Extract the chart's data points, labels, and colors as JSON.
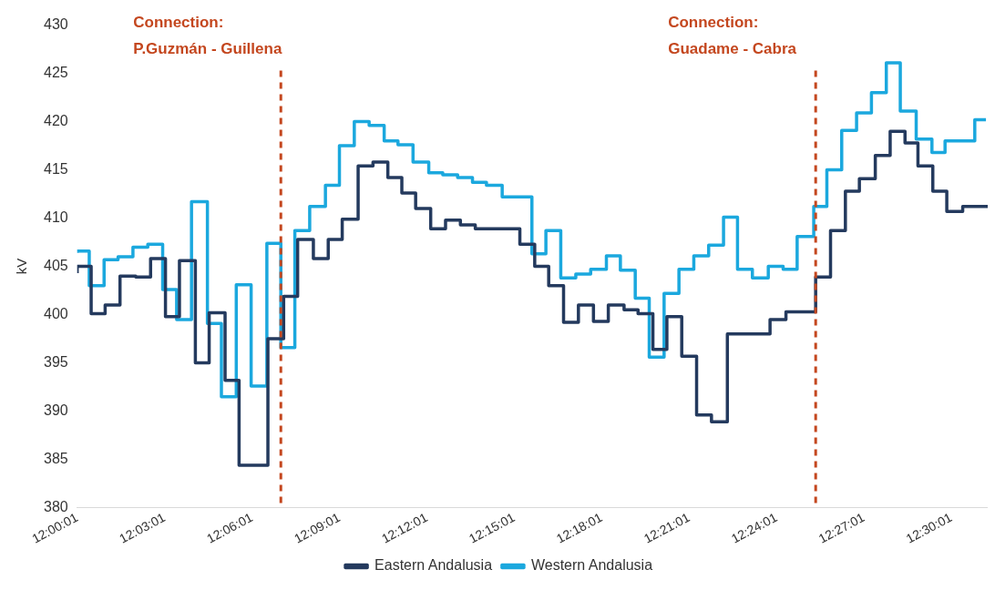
{
  "chart_data": {
    "type": "step",
    "ylabel": "kV",
    "legend": "bottom",
    "grid": false,
    "line_style": "solid",
    "marker": "none",
    "xlim": [
      12.0003,
      12.5211
    ],
    "ylim": [
      380,
      430
    ],
    "yticks": [
      380,
      385,
      390,
      395,
      400,
      405,
      410,
      415,
      420,
      425,
      430
    ],
    "xticks": [
      {
        "value": 12.0003,
        "label": "12:00:01"
      },
      {
        "value": 12.0503,
        "label": "12:03:01"
      },
      {
        "value": 12.1003,
        "label": "12:06:01"
      },
      {
        "value": 12.1503,
        "label": "12:09:01"
      },
      {
        "value": 12.2003,
        "label": "12:12:01"
      },
      {
        "value": 12.2503,
        "label": "12:15:01"
      },
      {
        "value": 12.3003,
        "label": "12:18:01"
      },
      {
        "value": 12.3503,
        "label": "12:21:01"
      },
      {
        "value": 12.4003,
        "label": "12:24:01"
      },
      {
        "value": 12.4503,
        "label": "12:27:01"
      },
      {
        "value": 12.5003,
        "label": "12:30:01"
      }
    ],
    "ref_lines": [
      {
        "axis": "x",
        "value": 12.1168,
        "label": "Connection:\nP.Guzmán - Guillena",
        "color": "#c4471f",
        "line_style": "dashed"
      },
      {
        "axis": "x",
        "value": 12.4227,
        "label": "Connection:\nGuadame - Cabra",
        "color": "#c4471f",
        "line_style": "dashed"
      }
    ],
    "series": [
      {
        "name": "Eastern Andalusia",
        "color": "#243a5e",
        "x": [
          12.0003,
          12.0083,
          12.0163,
          12.0248,
          12.0338,
          12.0423,
          12.0508,
          12.0588,
          12.0679,
          12.0758,
          12.0849,
          12.0929,
          12.1094,
          12.1184,
          12.1264,
          12.1354,
          12.1439,
          12.1519,
          12.161,
          12.1695,
          12.178,
          12.186,
          12.1939,
          12.2025,
          12.211,
          12.2195,
          12.228,
          12.2535,
          12.262,
          12.27,
          12.2785,
          12.287,
          12.2956,
          12.3041,
          12.3131,
          12.3211,
          12.3296,
          12.3376,
          12.3461,
          12.3546,
          12.3631,
          12.3722,
          12.3966,
          12.4057,
          12.4227,
          12.4312,
          12.4397,
          12.4477,
          12.4568,
          12.4653,
          12.4738,
          12.4812,
          12.4897,
          12.4977,
          12.5068,
          12.5158,
          12.5211
        ],
        "values": [
          404.3,
          405.0,
          400.1,
          401.0,
          404.0,
          403.9,
          405.8,
          399.8,
          405.6,
          395.0,
          400.2,
          393.2,
          384.4,
          397.5,
          401.9,
          407.8,
          405.8,
          407.8,
          409.9,
          415.4,
          415.8,
          414.2,
          412.6,
          411.0,
          408.9,
          409.8,
          409.3,
          408.9,
          407.3,
          405.0,
          403.0,
          399.2,
          401.0,
          399.3,
          401.0,
          400.5,
          400.1,
          396.4,
          399.8,
          395.7,
          389.6,
          388.9,
          398.0,
          399.5,
          400.3,
          403.9,
          408.7,
          412.8,
          414.1,
          416.5,
          419.0,
          417.8,
          415.4,
          412.8,
          410.7,
          411.2,
          411.2
        ]
      },
      {
        "name": "Western Andalusia",
        "color": "#1ba8de",
        "x": [
          12.0003,
          12.0072,
          12.0157,
          12.0237,
          12.0322,
          12.0407,
          12.0492,
          12.0572,
          12.0657,
          12.0748,
          12.0828,
          12.0913,
          12.0998,
          12.1088,
          12.1168,
          12.1248,
          12.1333,
          12.1423,
          12.1503,
          12.1588,
          12.1673,
          12.1759,
          12.1838,
          12.1924,
          12.2014,
          12.2094,
          12.2179,
          12.2264,
          12.2344,
          12.2434,
          12.2604,
          12.2684,
          12.2769,
          12.2855,
          12.294,
          12.303,
          12.311,
          12.3195,
          12.3275,
          12.336,
          12.3445,
          12.353,
          12.3615,
          12.37,
          12.378,
          12.3865,
          12.3956,
          12.4041,
          12.4121,
          12.4216,
          12.4291,
          12.4376,
          12.4461,
          12.4546,
          12.4631,
          12.4711,
          12.4802,
          12.4892,
          12.4967,
          12.5137,
          12.5201
        ],
        "values": [
          406.4,
          406.6,
          403.0,
          405.7,
          406.0,
          407.0,
          407.3,
          402.6,
          399.5,
          411.7,
          399.1,
          391.5,
          403.1,
          392.6,
          407.4,
          396.6,
          408.7,
          411.2,
          413.4,
          417.5,
          420.0,
          419.6,
          418.0,
          417.6,
          415.8,
          414.7,
          414.5,
          414.2,
          413.7,
          413.4,
          412.2,
          406.3,
          408.7,
          403.8,
          404.2,
          404.7,
          406.1,
          404.6,
          401.7,
          395.6,
          402.2,
          404.7,
          406.1,
          407.2,
          410.1,
          404.7,
          403.8,
          405.0,
          404.7,
          408.1,
          411.2,
          415.0,
          419.1,
          420.9,
          423.0,
          426.1,
          421.1,
          418.2,
          416.8,
          418.0,
          420.2
        ]
      }
    ]
  }
}
